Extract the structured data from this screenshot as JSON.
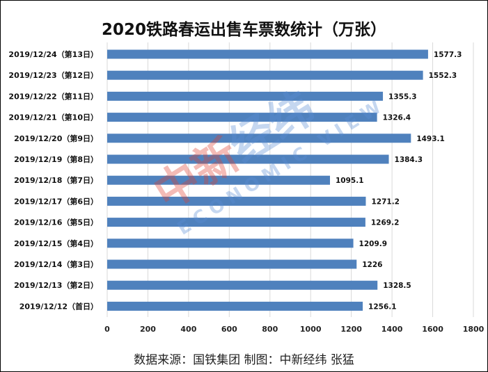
{
  "chart_data": {
    "type": "bar",
    "orientation": "horizontal",
    "title": "2020铁路春运出售车票数统计（万张）",
    "categories": [
      "2019/12/24（第13日）",
      "2019/12/23（第12日）",
      "2019/12/22（第11日）",
      "2019/12/21（第10日）",
      "2019/12/20（第9日）",
      "2019/12/19（第8日）",
      "2019/12/18（第7日）",
      "2019/12/17（第6日）",
      "2019/12/16（第5日）",
      "2019/12/15（第4日）",
      "2019/12/14（第3日）",
      "2019/12/13（第2日）",
      "2019/12/12（首日）"
    ],
    "values": [
      1577.3,
      1552.3,
      1355.3,
      1326.4,
      1493.1,
      1384.3,
      1095.1,
      1271.2,
      1269.2,
      1209.9,
      1226,
      1328.5,
      1256.1
    ],
    "value_labels": [
      "1577.3",
      "1552.3",
      "1355.3",
      "1326.4",
      "1493.1",
      "1384.3",
      "1095.1",
      "1271.2",
      "1269.2",
      "1209.9",
      "1226",
      "1328.5",
      "1256.1"
    ],
    "xlim": [
      0,
      1800
    ],
    "xticks": [
      0,
      200,
      400,
      600,
      800,
      1000,
      1200,
      1400,
      1600,
      1800
    ],
    "grid": true,
    "bar_color": "#4f81bd"
  },
  "source": "数据来源：国铁集团  制图：中新经纬  张猛",
  "watermark": {
    "cn": "中新经纬",
    "en": "ECONOMIC VIEW"
  }
}
